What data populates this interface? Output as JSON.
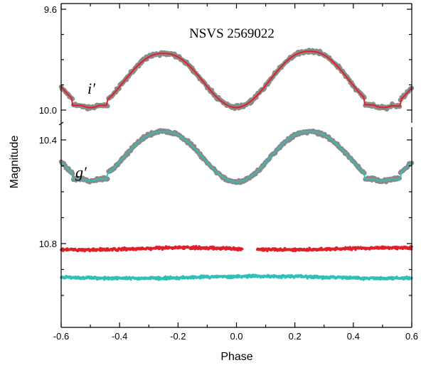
{
  "chart_data": {
    "type": "scatter",
    "title": "NSVS 2569022",
    "xlabel": "Phase",
    "ylabel": "Magnitude",
    "xlim": [
      -0.6,
      0.6
    ],
    "ylim_top": [
      9.6,
      10.1
    ],
    "ylim_bottom": [
      10.37,
      11.05
    ],
    "y_inverted": true,
    "broken_axis": true,
    "x_ticks": [
      "-0.6",
      "-0.4",
      "-0.2",
      "0.0",
      "0.2",
      "0.4",
      "0.6"
    ],
    "x_tick_values": [
      -0.6,
      -0.4,
      -0.2,
      0.0,
      0.2,
      0.4,
      0.6
    ],
    "y_ticks_top": [
      "9.6",
      "10.0"
    ],
    "y_tick_values_top": [
      9.6,
      10.0
    ],
    "y_ticks_bottom": [
      "10.4",
      "10.8"
    ],
    "y_tick_values_bottom": [
      10.4,
      10.8
    ],
    "grid": false,
    "colors": {
      "observed": "#8a8a8a",
      "i_band": "#e0202a",
      "g_band": "#30c0b8"
    },
    "series": [
      {
        "name": "i′",
        "kind": "observed light curve + fit",
        "x": [
          -0.6,
          -0.5,
          -0.45,
          -0.25,
          0.0,
          0.25,
          0.45,
          0.5,
          0.6
        ],
        "y": [
          9.96,
          9.99,
          9.99,
          9.78,
          9.99,
          9.77,
          9.99,
          9.99,
          9.96
        ]
      },
      {
        "name": "g′",
        "kind": "observed light curve + fit",
        "x": [
          -0.6,
          -0.5,
          -0.45,
          -0.25,
          0.0,
          0.25,
          0.45,
          0.5,
          0.6
        ],
        "y": [
          10.48,
          10.56,
          10.56,
          10.37,
          10.56,
          10.37,
          10.56,
          10.56,
          10.48
        ]
      },
      {
        "kind": "i′ residuals",
        "x": [
          -0.6,
          -0.3,
          0.0,
          0.3,
          0.6
        ],
        "y": [
          10.82,
          10.82,
          10.82,
          10.82,
          10.82
        ]
      },
      {
        "kind": "g′ residuals",
        "x": [
          -0.6,
          -0.3,
          0.0,
          0.3,
          0.6
        ],
        "y": [
          10.93,
          10.93,
          10.93,
          10.93,
          10.93
        ]
      }
    ]
  }
}
